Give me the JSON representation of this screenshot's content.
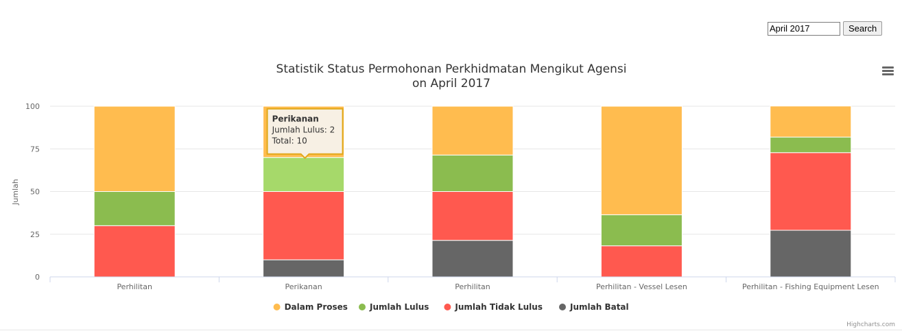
{
  "search": {
    "value": "April 2017",
    "button_label": "Search"
  },
  "menu": {
    "icon": "hamburger-menu-icon"
  },
  "credit": "Highcharts.com",
  "chart_data": {
    "type": "bar",
    "stacked": true,
    "title": "Statistik Status Permohonan Perkhidmatan Mengikut Agensi",
    "subtitle": "on April 2017",
    "xlabel": "",
    "ylabel": "Jumlah",
    "ylim": [
      0,
      100
    ],
    "yticks": [
      0,
      25,
      50,
      75,
      100
    ],
    "grid": true,
    "legend_position": "bottom",
    "categories": [
      "Perhilitan",
      "Perikanan",
      "Perhilitan",
      "Perhilitan - Vessel Lesen",
      "Perhilitan - Fishing Equipment Lesen"
    ],
    "series": [
      {
        "name": "Dalam Proses",
        "color": "#FFBC4F",
        "values": [
          50,
          30,
          28.6,
          63.6,
          18.2
        ]
      },
      {
        "name": "Jumlah Lulus",
        "color": "#8BBC4F",
        "values": [
          20,
          20,
          21.4,
          18.2,
          9.1
        ]
      },
      {
        "name": "Jumlah Tidak Lulus",
        "color": "#FF594F",
        "values": [
          30,
          40,
          28.6,
          18.2,
          45.5
        ]
      },
      {
        "name": "Jumlah Batal",
        "color": "#666666",
        "values": [
          0,
          10,
          21.4,
          0,
          27.3
        ]
      }
    ],
    "hover_color": "#A6D96A",
    "tooltip": {
      "category": "Perikanan",
      "line1": "Jumlah Lulus: 2",
      "line2": "Total: 10"
    }
  }
}
